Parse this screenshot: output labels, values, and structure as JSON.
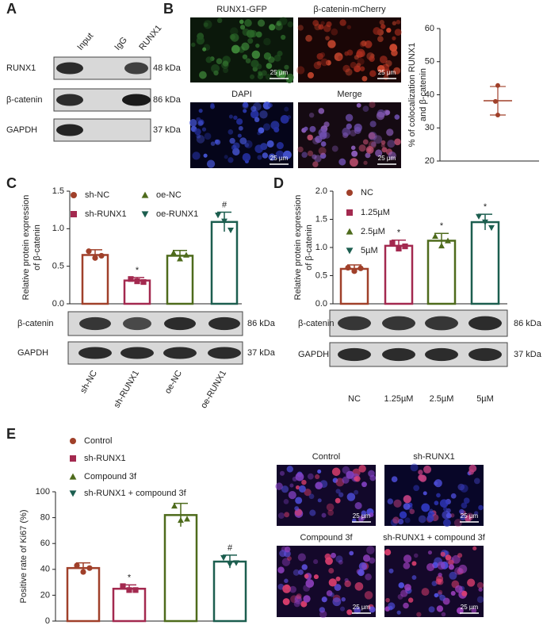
{
  "panels": {
    "A": {
      "letter": "A",
      "lanes": [
        "Input",
        "IgG",
        "RUNX1"
      ],
      "rows": [
        "RUNX1",
        "β-catenin",
        "GAPDH"
      ],
      "sizes": [
        "48 kDa",
        "86 kDa",
        "37 kDa"
      ]
    },
    "B": {
      "letter": "B",
      "images": [
        "RUNX1-GFP",
        "β-catenin-mCherry",
        "DAPI",
        "Merge"
      ],
      "scale": "25 µm"
    },
    "C": {
      "letter": "C",
      "rows": [
        "β-catenin",
        "GAPDH"
      ],
      "sizes": [
        "86 kDa",
        "37 kDa"
      ]
    },
    "D": {
      "letter": "D",
      "rows": [
        "β-catenin",
        "GAPDH"
      ],
      "sizes": [
        "86 kDa",
        "37 kDa"
      ]
    },
    "E": {
      "letter": "E",
      "images": [
        "Control",
        "sh-RUNX1",
        "Compound 3f",
        "sh-RUNX1 + compound 3f"
      ],
      "scale": "25 µm"
    }
  },
  "chart_data": [
    {
      "type": "dot",
      "ylabel_lines": [
        "% of colocalization RUNX1",
        "and β-catenin"
      ],
      "values": [
        42.8,
        38,
        33.9
      ],
      "mean": 38.2,
      "error": 4.3,
      "color": "#a0402a",
      "ylim": [
        20,
        60
      ],
      "yticks": [
        20,
        30,
        40,
        50,
        60
      ]
    },
    {
      "type": "bar",
      "ylabel_lines": [
        "Relative protein expression",
        "of β-catenin"
      ],
      "categories": [
        "sh-NC",
        "sh-RUNX1",
        "oe-NC",
        "oe-RUNX1"
      ],
      "colors": [
        "#a0402a",
        "#a3294f",
        "#4e6b1c",
        "#1c5e4f"
      ],
      "markers": [
        "circle",
        "square",
        "triangle",
        "triangle-down"
      ],
      "values": [
        0.65,
        0.31,
        0.64,
        1.09
      ],
      "errors": [
        0.07,
        0.04,
        0.07,
        0.13
      ],
      "points": [
        [
          0.7,
          0.61,
          0.64
        ],
        [
          0.33,
          0.3,
          0.29
        ],
        [
          0.68,
          0.6,
          0.65
        ],
        [
          1.18,
          1.1,
          0.98
        ]
      ],
      "annotations": [
        null,
        "*",
        null,
        "#"
      ],
      "ylim": [
        0,
        1.5
      ],
      "yticks": [
        {
          "value": 0,
          "label": "0.0"
        },
        0.5,
        {
          "value": 1,
          "label": "1.0"
        },
        1.5
      ]
    },
    {
      "type": "bar",
      "ylabel_lines": [
        "Relative protein expression",
        "of β-catenin"
      ],
      "categories": [
        "NC",
        "1.25µM",
        "2.5µM",
        "5µM"
      ],
      "colors": [
        "#a0402a",
        "#a3294f",
        "#4e6b1c",
        "#1c5e4f"
      ],
      "markers": [
        "circle",
        "square",
        "triangle",
        "triangle-down"
      ],
      "values": [
        0.62,
        1.03,
        1.12,
        1.45
      ],
      "errors": [
        0.07,
        0.1,
        0.13,
        0.14
      ],
      "points": [
        [
          0.64,
          0.58,
          0.63
        ],
        [
          1.08,
          0.98,
          1.02
        ],
        [
          1.2,
          1.03,
          1.12
        ],
        [
          1.55,
          1.45,
          1.35
        ]
      ],
      "annotations": [
        null,
        "*",
        "*",
        "*"
      ],
      "ylim": [
        0,
        2
      ],
      "yticks": [
        {
          "value": 0,
          "label": "0.0"
        },
        0.5,
        {
          "value": 1,
          "label": "1.0"
        },
        1.5,
        {
          "value": 2,
          "label": "2.0"
        }
      ]
    },
    {
      "type": "bar",
      "ylabel_lines": [
        "Positive rate of Ki67 (%)"
      ],
      "categories": [
        "Control",
        "sh-RUNX1",
        "Compound 3f",
        "sh-RUNX1 + compound 3f"
      ],
      "colors": [
        "#a0402a",
        "#a3294f",
        "#4e6b1c",
        "#1c5e4f"
      ],
      "markers": [
        "circle",
        "square",
        "triangle",
        "triangle-down"
      ],
      "values": [
        41,
        25,
        82,
        46
      ],
      "errors": [
        4,
        3,
        9,
        5
      ],
      "points": [
        [
          43,
          38,
          41
        ],
        [
          27,
          24,
          24
        ],
        [
          89,
          78,
          79
        ],
        [
          49,
          44,
          45
        ]
      ],
      "annotations": [
        null,
        "*",
        null,
        "#"
      ],
      "ylim": [
        0,
        100
      ],
      "yticks": [
        0,
        20,
        40,
        60,
        80,
        100
      ]
    }
  ]
}
